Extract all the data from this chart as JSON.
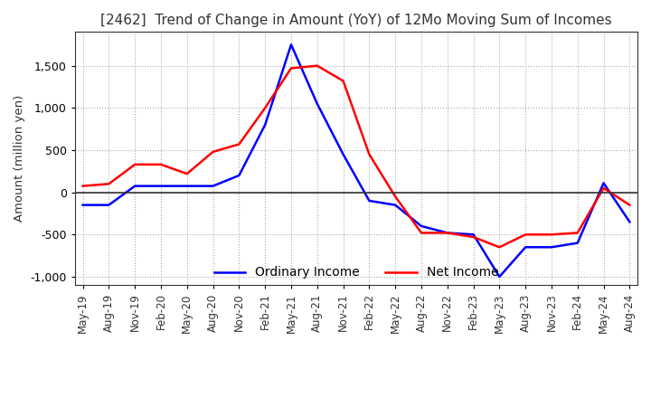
{
  "title": "[2462]  Trend of Change in Amount (YoY) of 12Mo Moving Sum of Incomes",
  "ylabel": "Amount (million yen)",
  "ylim": [
    -1100,
    1900
  ],
  "yticks": [
    -1000,
    -500,
    0,
    500,
    1000,
    1500
  ],
  "legend_labels": [
    "Ordinary Income",
    "Net Income"
  ],
  "line_colors": [
    "blue",
    "red"
  ],
  "dates": [
    "May-19",
    "Aug-19",
    "Nov-19",
    "Feb-20",
    "May-20",
    "Aug-20",
    "Nov-20",
    "Feb-21",
    "May-21",
    "Aug-21",
    "Nov-21",
    "Feb-22",
    "May-22",
    "Aug-22",
    "Nov-22",
    "Feb-23",
    "May-23",
    "Aug-23",
    "Nov-23",
    "Feb-24",
    "May-24",
    "Aug-24"
  ],
  "ordinary_income": [
    -150,
    -150,
    75,
    75,
    75,
    75,
    200,
    800,
    1750,
    1050,
    450,
    -100,
    -150,
    -400,
    -480,
    -500,
    -1000,
    -650,
    -650,
    -600,
    110,
    -350
  ],
  "net_income": [
    75,
    100,
    330,
    330,
    220,
    480,
    570,
    1000,
    1470,
    1500,
    1320,
    450,
    -50,
    -480,
    -480,
    -530,
    -650,
    -500,
    -500,
    -480,
    50,
    -150
  ],
  "background_color": "#ffffff",
  "grid_color": "#aaaaaa"
}
